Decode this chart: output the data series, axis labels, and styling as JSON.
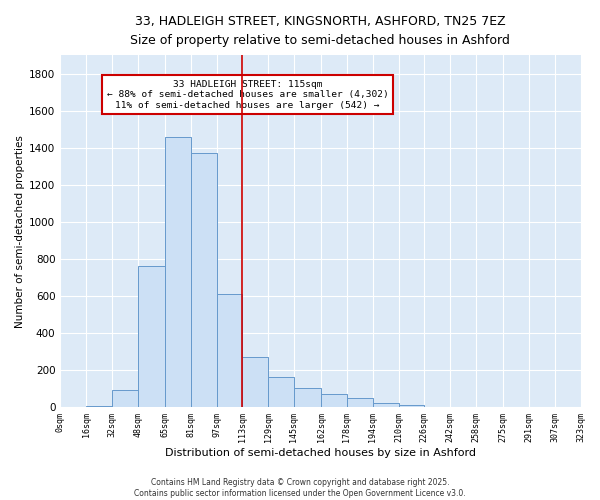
{
  "title": "33, HADLEIGH STREET, KINGSNORTH, ASHFORD, TN25 7EZ",
  "subtitle": "Size of property relative to semi-detached houses in Ashford",
  "xlabel": "Distribution of semi-detached houses by size in Ashford",
  "ylabel": "Number of semi-detached properties",
  "bar_color": "#cce0f5",
  "bar_edge_color": "#6699cc",
  "bg_color": "#ddeaf7",
  "grid_color": "#ffffff",
  "annotation_box_color": "#cc0000",
  "vline_color": "#cc0000",
  "bins": [
    0,
    16,
    32,
    48,
    65,
    81,
    97,
    113,
    129,
    145,
    162,
    178,
    194,
    210,
    226,
    242,
    258,
    275,
    291,
    307,
    323
  ],
  "counts": [
    2,
    5,
    90,
    760,
    1460,
    1370,
    610,
    270,
    160,
    105,
    70,
    50,
    20,
    10,
    2,
    2,
    0,
    0,
    0,
    0
  ],
  "property_size": 115,
  "property_line_bin": 113,
  "annotation_title": "33 HADLEIGH STREET: 115sqm",
  "annotation_line1": "← 88% of semi-detached houses are smaller (4,302)",
  "annotation_line2": "11% of semi-detached houses are larger (542) →",
  "ylim": [
    0,
    1900
  ],
  "yticks": [
    0,
    200,
    400,
    600,
    800,
    1000,
    1200,
    1400,
    1600,
    1800
  ],
  "footer_line1": "Contains HM Land Registry data © Crown copyright and database right 2025.",
  "footer_line2": "Contains public sector information licensed under the Open Government Licence v3.0."
}
